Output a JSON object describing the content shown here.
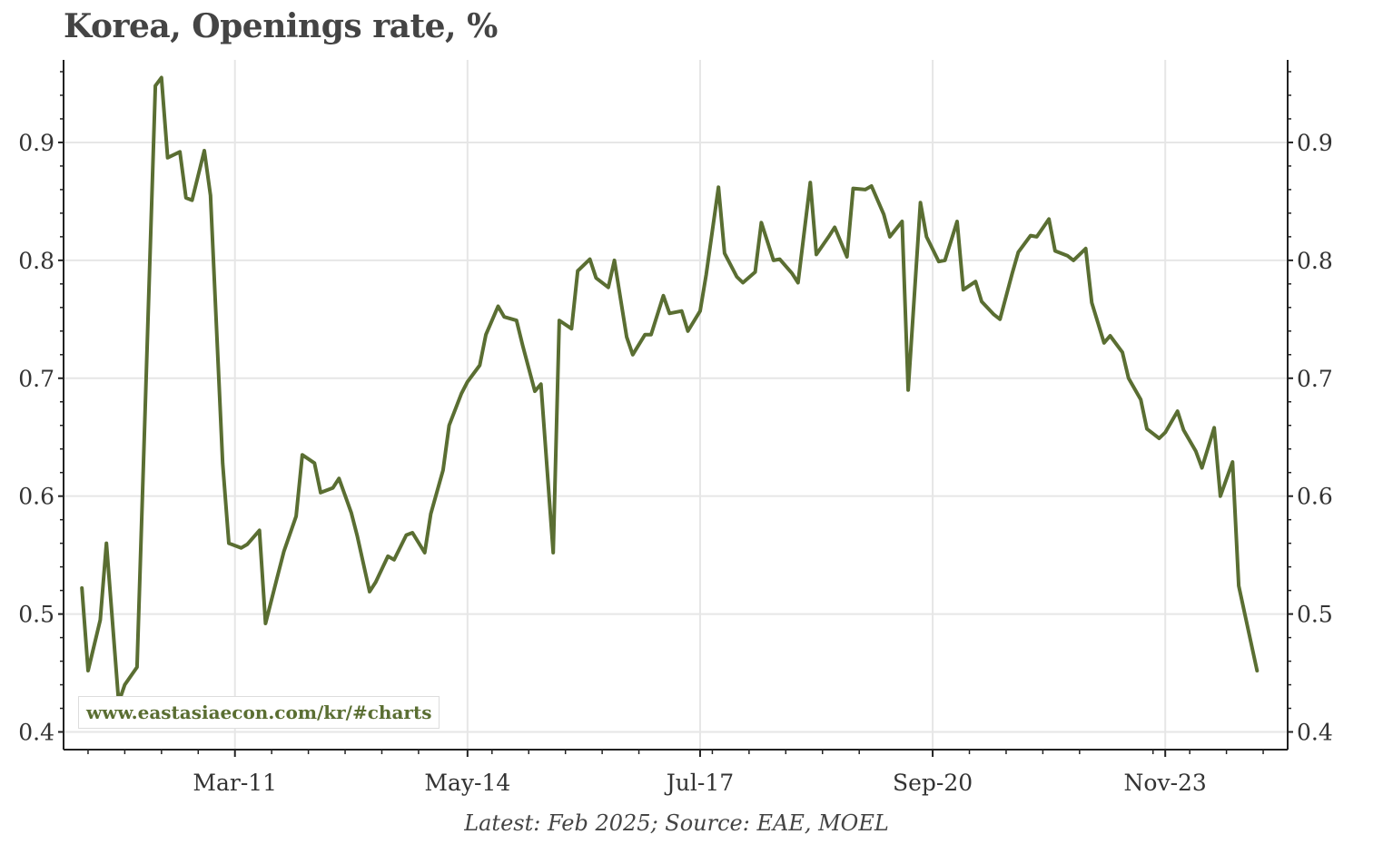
{
  "chart_data": {
    "type": "line",
    "title": "Korea, Openings rate, %",
    "xlabel": "",
    "ylabel": "",
    "footer": "Latest: Feb 2025; Source: EAE, MOEL",
    "watermark": "www.eastasiaecon.com/kr/#charts",
    "x_tick_labels": [
      "Mar-11",
      "May-14",
      "Jul-17",
      "Sep-20",
      "Nov-23"
    ],
    "x_ticks": [
      "2011-03",
      "2014-05",
      "2017-07",
      "2020-09",
      "2023-11"
    ],
    "y_ticks": [
      0.4,
      0.5,
      0.6,
      0.7,
      0.8,
      0.9
    ],
    "y_tick_labels": [
      "0.4",
      "0.5",
      "0.6",
      "0.7",
      "0.8",
      "0.9"
    ],
    "xlim": [
      "2008-11",
      "2025-07"
    ],
    "ylim": [
      0.385,
      0.97
    ],
    "grid": true,
    "line_color": "#5a6e32",
    "series": [
      {
        "x": [
          "2009-02",
          "2009-03",
          "2009-05",
          "2009-06",
          "2009-08",
          "2009-09",
          "2009-11",
          "2010-02",
          "2010-03",
          "2010-04",
          "2010-06",
          "2010-07",
          "2010-08",
          "2010-10",
          "2010-11",
          "2011-01",
          "2011-02",
          "2011-04",
          "2011-05",
          "2011-07",
          "2011-08",
          "2011-10",
          "2011-11",
          "2012-01",
          "2012-02",
          "2012-04",
          "2012-05",
          "2012-07",
          "2012-08",
          "2012-10",
          "2012-11",
          "2013-01",
          "2013-02",
          "2013-04",
          "2013-05",
          "2013-07",
          "2013-08",
          "2013-10",
          "2013-11",
          "2014-01",
          "2014-02",
          "2014-04",
          "2014-05",
          "2014-07",
          "2014-08",
          "2014-10",
          "2014-11",
          "2015-01",
          "2015-02",
          "2015-04",
          "2015-05",
          "2015-07",
          "2015-08",
          "2015-10",
          "2015-11",
          "2016-01",
          "2016-02",
          "2016-04",
          "2016-05",
          "2016-07",
          "2016-08",
          "2016-10",
          "2016-11",
          "2017-01",
          "2017-02",
          "2017-04",
          "2017-05",
          "2017-07",
          "2017-08",
          "2017-10",
          "2017-11",
          "2018-01",
          "2018-02",
          "2018-04",
          "2018-05",
          "2018-07",
          "2018-08",
          "2018-10",
          "2018-11",
          "2019-01",
          "2019-02",
          "2019-04",
          "2019-05",
          "2019-07",
          "2019-08",
          "2019-10",
          "2019-11",
          "2020-01",
          "2020-02",
          "2020-04",
          "2020-05",
          "2020-07",
          "2020-08",
          "2020-10",
          "2020-11",
          "2021-01",
          "2021-02",
          "2021-04",
          "2021-05",
          "2021-07",
          "2021-08",
          "2021-10",
          "2021-11",
          "2022-01",
          "2022-02",
          "2022-04",
          "2022-05",
          "2022-07",
          "2022-08",
          "2022-10",
          "2022-11",
          "2023-01",
          "2023-02",
          "2023-04",
          "2023-05",
          "2023-07",
          "2023-08",
          "2023-10",
          "2023-11",
          "2024-01",
          "2024-02",
          "2024-04",
          "2024-05",
          "2024-07",
          "2024-08",
          "2024-10",
          "2024-11",
          "2025-02"
        ],
        "y": [
          0.522,
          0.452,
          0.495,
          0.56,
          0.425,
          0.44,
          0.455,
          0.948,
          0.955,
          0.887,
          0.892,
          0.853,
          0.851,
          0.893,
          0.855,
          0.628,
          0.56,
          0.556,
          0.559,
          0.571,
          0.492,
          0.533,
          0.553,
          0.583,
          0.635,
          0.628,
          0.603,
          0.607,
          0.615,
          0.586,
          0.566,
          0.519,
          0.527,
          0.549,
          0.546,
          0.567,
          0.569,
          0.552,
          0.585,
          0.622,
          0.66,
          0.687,
          0.697,
          0.711,
          0.737,
          0.761,
          0.752,
          0.749,
          0.728,
          0.689,
          0.695,
          0.552,
          0.749,
          0.742,
          0.791,
          0.801,
          0.785,
          0.777,
          0.8,
          0.735,
          0.72,
          0.737,
          0.737,
          0.77,
          0.755,
          0.757,
          0.74,
          0.757,
          0.788,
          0.862,
          0.806,
          0.786,
          0.781,
          0.79,
          0.832,
          0.8,
          0.801,
          0.789,
          0.781,
          0.866,
          0.805,
          0.82,
          0.828,
          0.803,
          0.861,
          0.86,
          0.863,
          0.839,
          0.82,
          0.833,
          0.69,
          0.849,
          0.82,
          0.799,
          0.8,
          0.833,
          0.775,
          0.782,
          0.765,
          0.754,
          0.75,
          0.789,
          0.807,
          0.821,
          0.82,
          0.835,
          0.808,
          0.804,
          0.8,
          0.81,
          0.764,
          0.73,
          0.736,
          0.722,
          0.7,
          0.682,
          0.657,
          0.649,
          0.654,
          0.672,
          0.656,
          0.638,
          0.624,
          0.658,
          0.6,
          0.629,
          0.524,
          0.452
        ]
      }
    ]
  }
}
